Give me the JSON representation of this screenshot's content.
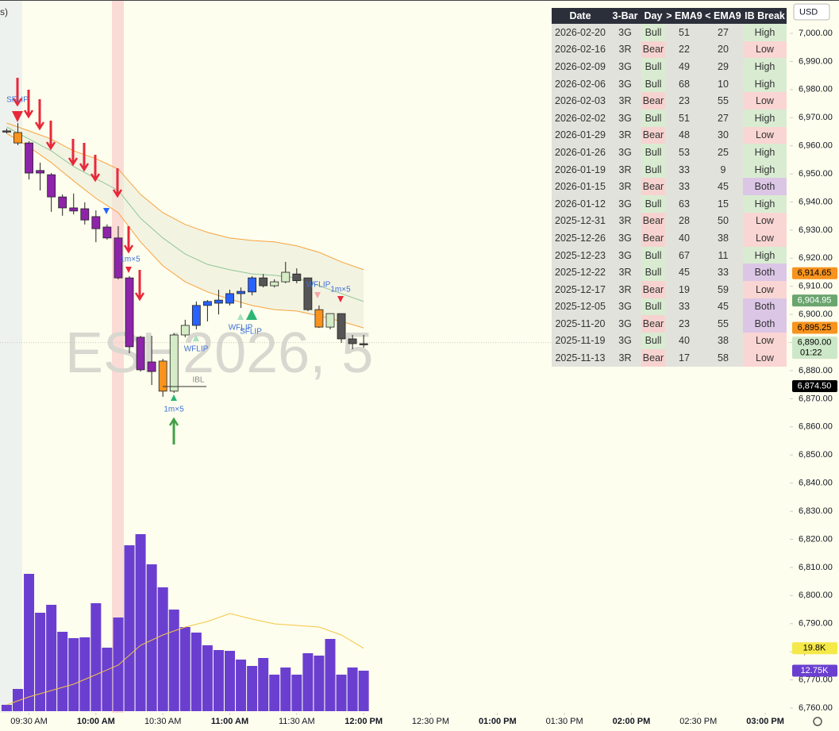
{
  "legend_fragment": "s)",
  "watermark": "ESH2026, 5",
  "currency": "USD",
  "annotations": [
    "SFLIP",
    "1m×5",
    "1m×5",
    "WFLIP",
    "WFLIP",
    "SFLIP",
    "WFLIP",
    "1m×5",
    "IBL"
  ],
  "chart_data": {
    "type": "candlestick",
    "x": [
      "09:20 AM",
      "09:25 AM",
      "09:30 AM",
      "09:35 AM",
      "09:40 AM",
      "09:45 AM",
      "09:50 AM",
      "09:55 AM",
      "10:00 AM",
      "10:05 AM",
      "10:10 AM",
      "10:15 AM",
      "10:20 AM",
      "10:25 AM",
      "10:30 AM",
      "10:35 AM",
      "10:40 AM",
      "10:45 AM",
      "10:50 AM",
      "10:55 AM",
      "11:00 AM",
      "11:05 AM",
      "11:10 AM",
      "11:15 AM",
      "11:20 AM",
      "11:25 AM",
      "11:30 AM",
      "11:35 AM",
      "11:40 AM",
      "11:45 AM",
      "11:50 AM",
      "11:55 AM",
      "12:00 PM"
    ],
    "open": [
      6965.3,
      6964.7,
      6961.0,
      6951.2,
      6949.7,
      6941.8,
      6937.9,
      6937.6,
      6934.8,
      6931.1,
      6927.2,
      6913.0,
      6891.9,
      6883.1,
      6883.4,
      6872.7,
      6892.7,
      6896.1,
      6903.2,
      6904.0,
      6904.0,
      6907.4,
      6908.0,
      6913.0,
      6910.2,
      6911.6,
      6914.4,
      6913.0,
      6901.7,
      6895.5,
      6900.3,
      6891.3,
      6889.6
    ],
    "high": [
      6966.1,
      6968.1,
      6961.6,
      6954.0,
      6950.3,
      6942.7,
      6943.0,
      6939.9,
      6937.0,
      6932.0,
      6931.4,
      6913.6,
      6892.4,
      6892.4,
      6884.2,
      6893.3,
      6898.1,
      6904.6,
      6905.1,
      6908.8,
      6908.8,
      6909.6,
      6913.6,
      6914.4,
      6912.5,
      6918.7,
      6916.4,
      6913.0,
      6903.2,
      6900.3,
      6900.3,
      6892.7,
      6892.7
    ],
    "low": [
      6964.4,
      6960.2,
      6948.0,
      6944.1,
      6936.5,
      6935.1,
      6935.6,
      6932.0,
      6925.7,
      6926.6,
      6912.5,
      6886.2,
      6879.7,
      6874.9,
      6870.7,
      6872.1,
      6891.9,
      6894.7,
      6897.5,
      6900.0,
      6903.2,
      6902.3,
      6906.8,
      6909.6,
      6909.6,
      6911.1,
      6911.1,
      6901.2,
      6895.2,
      6894.7,
      6889.9,
      6887.6,
      6888.2
    ],
    "close": [
      6965.0,
      6961.0,
      6950.3,
      6950.3,
      6941.8,
      6937.9,
      6936.8,
      6933.6,
      6930.5,
      6927.2,
      6913.0,
      6888.5,
      6880.3,
      6879.7,
      6872.7,
      6892.7,
      6896.1,
      6903.2,
      6904.6,
      6905.1,
      6907.4,
      6908.2,
      6913.0,
      6910.2,
      6911.6,
      6915.0,
      6912.0,
      6901.7,
      6895.5,
      6900.3,
      6891.3,
      6889.6,
      6889.3
    ],
    "candle_colors": [
      "#555555",
      "#f7931e",
      "#8e24aa",
      "#8e24aa",
      "#8e24aa",
      "#8e24aa",
      "#8e24aa",
      "#8e24aa",
      "#8e24aa",
      "#8e24aa",
      "#8e24aa",
      "#8e24aa",
      "#8e24aa",
      "#8e24aa",
      "#f7931e",
      "#d6ecc6",
      "#d6ecc6",
      "#2962ff",
      "#2962ff",
      "#2962ff",
      "#2962ff",
      "#2962ff",
      "#2962ff",
      "#555555",
      "#d6ecc6",
      "#d6ecc6",
      "#555555",
      "#555555",
      "#f7931e",
      "#d6ecc6",
      "#555555",
      "#555555",
      "#555555"
    ],
    "xlim": [
      "09:17 AM",
      "03:11 PM"
    ],
    "xticks": [
      "09:30 AM",
      "10:00 AM",
      "10:30 AM",
      "11:00 AM",
      "11:30 AM",
      "12:00 PM",
      "12:30 PM",
      "01:00 PM",
      "01:30 PM",
      "02:00 PM",
      "02:30 PM",
      "03:00 PM"
    ],
    "ylim": [
      6758.3,
      7011.86
    ],
    "yticks": [
      {
        "value": 7000,
        "label": "7,000.00"
      },
      {
        "value": 6990,
        "label": "6,990.00"
      },
      {
        "value": 6980,
        "label": "6,980.00"
      },
      {
        "value": 6970,
        "label": "6,970.00"
      },
      {
        "value": 6960,
        "label": "6,960.00"
      },
      {
        "value": 6950,
        "label": "6,950.00"
      },
      {
        "value": 6940,
        "label": "6,940.00"
      },
      {
        "value": 6930,
        "label": "6,930.00"
      },
      {
        "value": 6920,
        "label": "6,920.00"
      },
      {
        "value": 6910,
        "label": "6,910.00"
      },
      {
        "value": 6900,
        "label": "6,900.00"
      },
      {
        "value": 6890,
        "label": "6,890.00"
      },
      {
        "value": 6880,
        "label": "6,880.00"
      },
      {
        "value": 6870,
        "label": "6,870.00"
      },
      {
        "value": 6860,
        "label": "6,860.00"
      },
      {
        "value": 6850,
        "label": "6,850.00"
      },
      {
        "value": 6840,
        "label": "6,840.00"
      },
      {
        "value": 6830,
        "label": "6,830.00"
      },
      {
        "value": 6820,
        "label": "6,820.00"
      },
      {
        "value": 6810,
        "label": "6,810.00"
      },
      {
        "value": 6800,
        "label": "6,800.00"
      },
      {
        "value": 6790,
        "label": "6,790.00"
      },
      {
        "value": 6780,
        "label": "6,780.00"
      },
      {
        "value": 6770,
        "label": "6,770.00"
      },
      {
        "value": 6760,
        "label": "6,760.00"
      }
    ],
    "band_x": [
      "09:20 AM",
      "09:30 AM",
      "09:40 AM",
      "09:50 AM",
      "10:00 AM",
      "10:10 AM",
      "10:20 AM",
      "10:30 AM",
      "10:40 AM",
      "10:50 AM",
      "11:00 AM",
      "11:10 AM",
      "11:20 AM",
      "11:30 AM",
      "11:40 AM",
      "11:50 AM",
      "12:00 PM"
    ],
    "bands": [
      {
        "color": "#f7a440",
        "values": [
          6968.1,
          6965.3,
          6962.4,
          6958.2,
          6955.4,
          6951.7,
          6942.7,
          6936.2,
          6932.0,
          6929.2,
          6927.2,
          6926.3,
          6925.8,
          6924.4,
          6922.1,
          6918.7,
          6915.9
        ]
      },
      {
        "color": "#8fc79a",
        "values": [
          6966.7,
          6962.4,
          6958.2,
          6952.6,
          6948.3,
          6944.1,
          6934.2,
          6927.2,
          6921.5,
          6917.8,
          6915.9,
          6914.4,
          6913.9,
          6913.0,
          6910.2,
          6907.4,
          6904.6
        ]
      },
      {
        "color": "#f7a440",
        "values": [
          6964.4,
          6959.6,
          6954.0,
          6947.5,
          6941.3,
          6936.2,
          6925.8,
          6917.3,
          6911.6,
          6908.0,
          6905.4,
          6903.2,
          6901.7,
          6901.2,
          6899.5,
          6897.5,
          6895.2
        ]
      }
    ],
    "volume": {
      "color": "#6a3fd0",
      "vlim": [
        0,
        224000
      ],
      "values": [
        2000,
        7000,
        43250,
        31000,
        33500,
        25000,
        23000,
        23250,
        34000,
        20000,
        29500,
        52250,
        55750,
        46250,
        39000,
        32000,
        26500,
        24750,
        20750,
        19250,
        19000,
        16250,
        14250,
        16750,
        11500,
        13750,
        11500,
        18250,
        17500,
        22750,
        11500,
        13750,
        12750
      ],
      "ma_color": "#f5c542",
      "ma": [
        2000,
        4500,
        6500,
        8500,
        11500,
        14500,
        20750,
        24000,
        26500,
        28250,
        30750,
        29000,
        27500,
        27000,
        26500,
        24000,
        19800
      ]
    },
    "price_tags": [
      {
        "value": 6914.65,
        "label": "6,914.65",
        "color": "#f7931e",
        "text_color": "#000000"
      },
      {
        "value": 6904.95,
        "label": "6,904.95",
        "color": "#6aa56e",
        "text_color": "#ffffff"
      },
      {
        "value": 6895.25,
        "label": "6,895.25",
        "color": "#f7931e",
        "text_color": "#000000"
      },
      {
        "value": 6890.0,
        "label": "6,890.00",
        "countdown": "01:22",
        "color": "#cde8c8",
        "text_color": "#000000"
      },
      {
        "value": 6874.5,
        "label": "6,874.50",
        "color": "#000000",
        "text_color": "#ffffff"
      }
    ],
    "volume_tags": [
      {
        "value": 19800,
        "label": "19.8K",
        "color": "#f5e94a",
        "text_color": "#000000"
      },
      {
        "value": 12750,
        "label": "12.75K",
        "color": "#6a3fd0",
        "text_color": "#ffffff"
      }
    ]
  },
  "table": {
    "header": [
      "Date",
      "3-Bar",
      "Day",
      "> EMA9",
      "< EMA9",
      "IB Break"
    ],
    "rows": [
      [
        "2026-02-20",
        "3G",
        "Bull",
        "51",
        "27",
        "High"
      ],
      [
        "2026-02-16",
        "3R",
        "Bear",
        "22",
        "20",
        "Low"
      ],
      [
        "2026-02-09",
        "3G",
        "Bull",
        "49",
        "29",
        "High"
      ],
      [
        "2026-02-06",
        "3G",
        "Bull",
        "68",
        "10",
        "High"
      ],
      [
        "2026-02-03",
        "3R",
        "Bear",
        "23",
        "55",
        "Low"
      ],
      [
        "2026-02-02",
        "3G",
        "Bull",
        "51",
        "27",
        "High"
      ],
      [
        "2026-01-29",
        "3R",
        "Bear",
        "48",
        "30",
        "Low"
      ],
      [
        "2026-01-26",
        "3G",
        "Bull",
        "53",
        "25",
        "High"
      ],
      [
        "2026-01-19",
        "3R",
        "Bull",
        "33",
        "9",
        "High"
      ],
      [
        "2026-01-15",
        "3R",
        "Bear",
        "33",
        "45",
        "Both"
      ],
      [
        "2026-01-12",
        "3G",
        "Bull",
        "63",
        "15",
        "High"
      ],
      [
        "2025-12-31",
        "3R",
        "Bear",
        "28",
        "50",
        "Low"
      ],
      [
        "2025-12-26",
        "3G",
        "Bear",
        "40",
        "38",
        "Low"
      ],
      [
        "2025-12-23",
        "3G",
        "Bull",
        "67",
        "11",
        "High"
      ],
      [
        "2025-12-22",
        "3R",
        "Bull",
        "45",
        "33",
        "Both"
      ],
      [
        "2025-12-17",
        "3R",
        "Bear",
        "19",
        "59",
        "Low"
      ],
      [
        "2025-12-05",
        "3G",
        "Bull",
        "33",
        "45",
        "Both"
      ],
      [
        "2025-11-20",
        "3G",
        "Bear",
        "23",
        "55",
        "Both"
      ],
      [
        "2025-11-19",
        "3G",
        "Bull",
        "40",
        "38",
        "Low"
      ],
      [
        "2025-11-13",
        "3R",
        "Bear",
        "17",
        "58",
        "Low"
      ]
    ],
    "cell_default": "#e2e2dc",
    "cell_colors": {
      "Bull": "#d9ecd2",
      "Bear": "#f6d3d0",
      "High": "#d9ecd2",
      "Low": "#f9d6d3",
      "Both": "#dcc6e6"
    }
  }
}
